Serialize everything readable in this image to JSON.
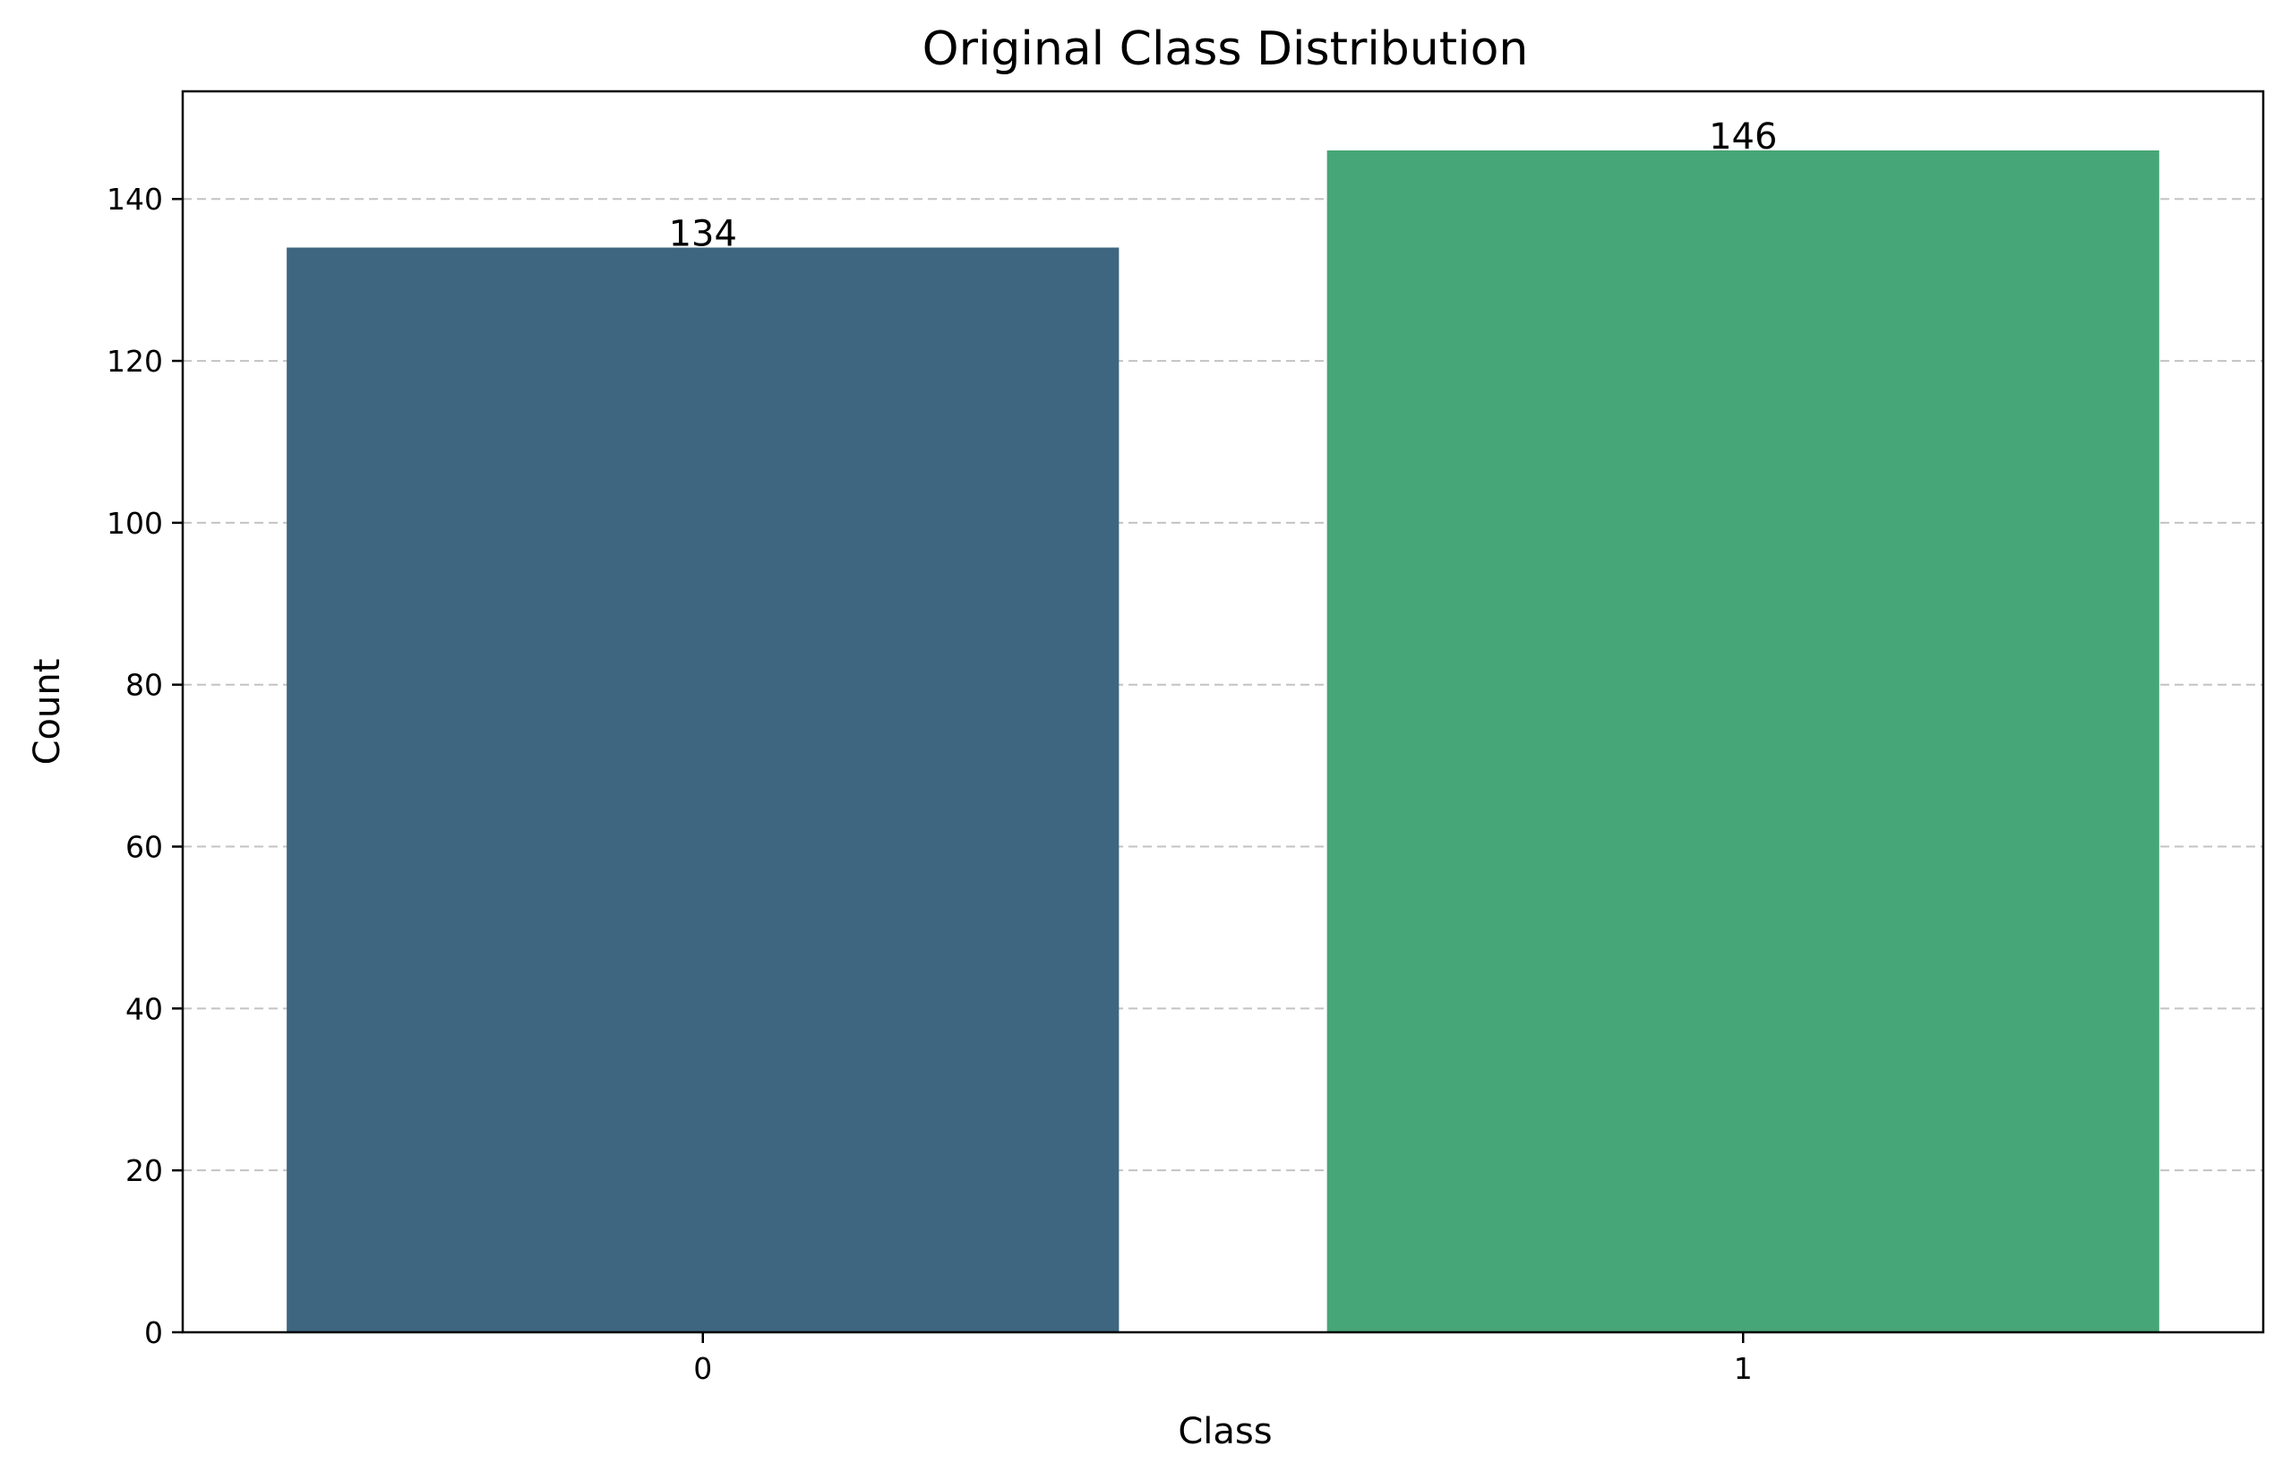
{
  "chart_data": {
    "type": "bar",
    "title": "Original Class Distribution",
    "xlabel": "Class",
    "ylabel": "Count",
    "categories": [
      "0",
      "1"
    ],
    "values": [
      134,
      146
    ],
    "bar_colors": [
      "#3e6680",
      "#47a677"
    ],
    "ylim": [
      0,
      153.3
    ],
    "yticks": [
      0,
      20,
      40,
      60,
      80,
      100,
      120,
      140
    ],
    "grid": "y-dashed"
  }
}
